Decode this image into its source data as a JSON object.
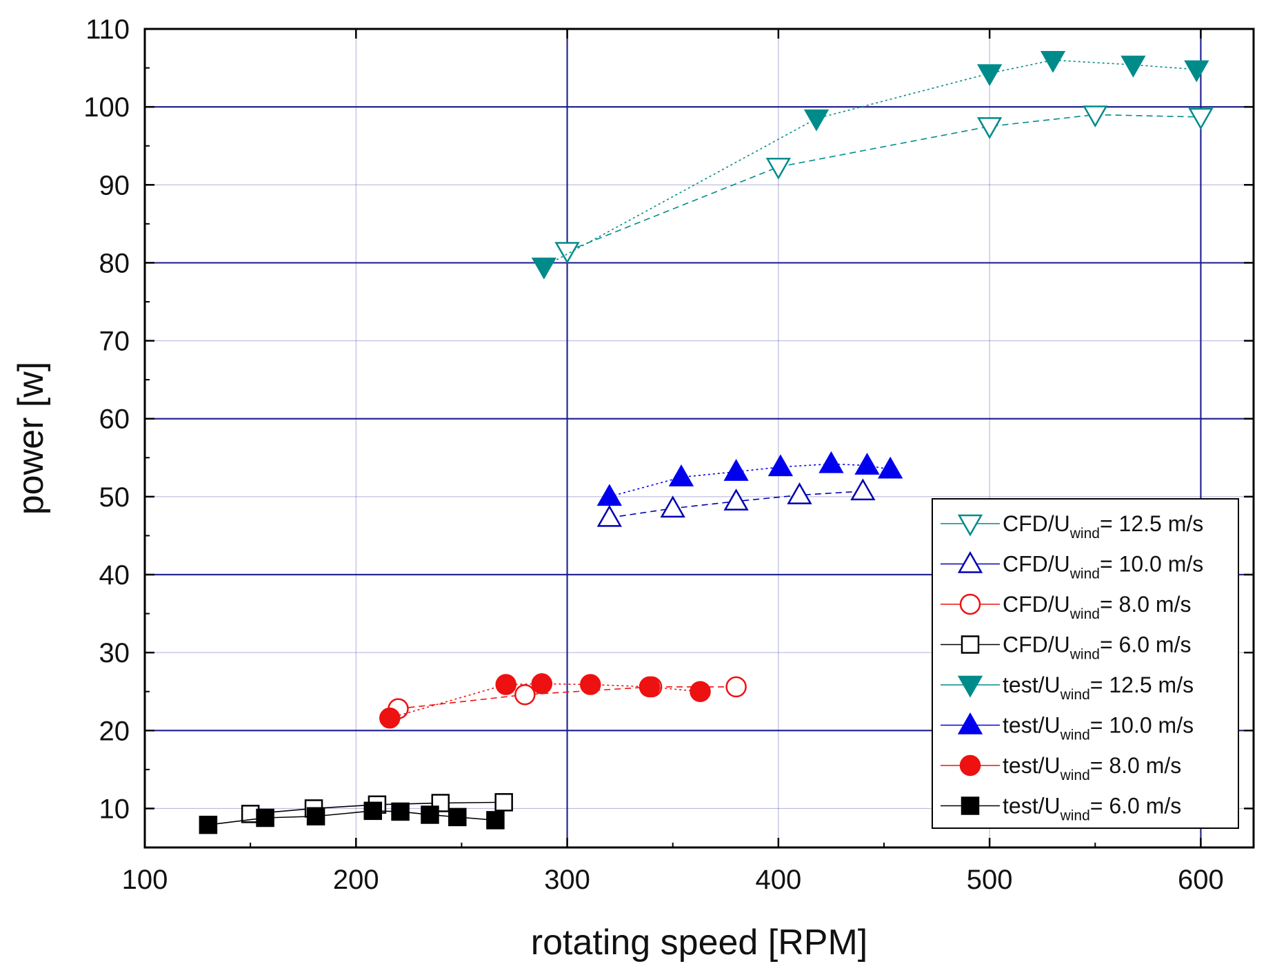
{
  "chart_data": {
    "type": "scatter",
    "title": "",
    "xlabel": "rotating speed [RPM]",
    "ylabel": "power [w]",
    "xlim": [
      100,
      625
    ],
    "ylim": [
      5,
      110
    ],
    "xticks": [
      100,
      200,
      300,
      400,
      500,
      600
    ],
    "yticks": [
      10,
      20,
      30,
      40,
      50,
      60,
      70,
      80,
      90,
      100,
      110
    ],
    "grid": true,
    "legend_position": "bottom-right",
    "series": [
      {
        "name": "CFD/U_wind = 12.5 m/s",
        "legend": {
          "prefix": "CFD/U",
          "sub": "wind",
          "suffix": "= 12.5 m/s"
        },
        "color": "#008B8B",
        "marker": "triangle-down",
        "filled": false,
        "line": "dashed",
        "x": [
          300,
          400,
          500,
          550,
          600
        ],
        "y": [
          81.5,
          92.3,
          97.5,
          99.0,
          98.7
        ]
      },
      {
        "name": "CFD/U_wind = 10.0 m/s",
        "legend": {
          "prefix": "CFD/U",
          "sub": "wind",
          "suffix": "= 10.0 m/s"
        },
        "color": "#0000B0",
        "marker": "triangle-up",
        "filled": false,
        "line": "dashed",
        "x": [
          320,
          350,
          380,
          410,
          440
        ],
        "y": [
          47.3,
          48.5,
          49.4,
          50.2,
          50.7
        ]
      },
      {
        "name": "CFD/U_wind = 8.0 m/s",
        "legend": {
          "prefix": "CFD/U",
          "sub": "wind",
          "suffix": "= 8.0 m/s"
        },
        "color": "#EE1111",
        "marker": "circle",
        "filled": false,
        "line": "dashed",
        "x": [
          220,
          280,
          340,
          380
        ],
        "y": [
          22.8,
          24.6,
          25.6,
          25.6
        ]
      },
      {
        "name": "CFD/U_wind = 6.0 m/s",
        "legend": {
          "prefix": "CFD/U",
          "sub": "wind",
          "suffix": "= 6.0 m/s"
        },
        "color": "#000000",
        "marker": "square",
        "filled": false,
        "line": "solid",
        "x": [
          150,
          180,
          210,
          240,
          270
        ],
        "y": [
          9.3,
          10.0,
          10.5,
          10.7,
          10.8
        ]
      },
      {
        "name": "test/U_wind = 12.5 m/s",
        "legend": {
          "prefix": "test/U",
          "sub": "wind",
          "suffix": "= 12.5 m/s"
        },
        "color": "#008B8B",
        "marker": "triangle-down",
        "filled": true,
        "line": "dotted",
        "x": [
          289,
          418,
          500,
          530,
          568,
          598
        ],
        "y": [
          79.5,
          98.5,
          104.3,
          106.0,
          105.4,
          104.8
        ]
      },
      {
        "name": "test/U_wind = 10.0 m/s",
        "legend": {
          "prefix": "test/U",
          "sub": "wind",
          "suffix": "= 10.0 m/s"
        },
        "color": "#0000EE",
        "marker": "triangle-up",
        "filled": true,
        "line": "dotted",
        "x": [
          320,
          354,
          380,
          401,
          425,
          442,
          453
        ],
        "y": [
          50.0,
          52.5,
          53.2,
          53.8,
          54.2,
          54.0,
          53.5
        ]
      },
      {
        "name": "test/U_wind = 8.0 m/s",
        "legend": {
          "prefix": "test/U",
          "sub": "wind",
          "suffix": "= 8.0 m/s"
        },
        "color": "#EE1111",
        "marker": "circle",
        "filled": true,
        "line": "dotted",
        "x": [
          216,
          271,
          288,
          311,
          339,
          363
        ],
        "y": [
          21.6,
          25.9,
          26.0,
          25.9,
          25.6,
          25.0
        ]
      },
      {
        "name": "test/U_wind = 6.0 m/s",
        "legend": {
          "prefix": "test/U",
          "sub": "wind",
          "suffix": "= 6.0 m/s"
        },
        "color": "#000000",
        "marker": "square",
        "filled": true,
        "line": "solid",
        "x": [
          130,
          157,
          181,
          208,
          221,
          235,
          248,
          266
        ],
        "y": [
          7.9,
          8.8,
          9.0,
          9.7,
          9.6,
          9.2,
          8.9,
          8.5
        ]
      }
    ]
  }
}
